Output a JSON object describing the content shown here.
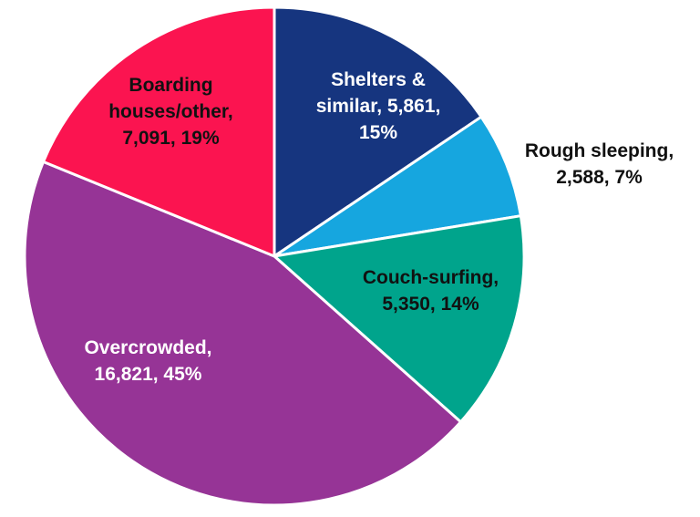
{
  "chart_data": {
    "type": "pie",
    "title": "",
    "start_angle": "12 o'clock, clockwise",
    "slices": [
      {
        "name": "Shelters & similar",
        "value": 5861,
        "percent": 15,
        "color": "#16357f",
        "label_color": "#ffffff",
        "label": [
          "Shelters &",
          "similar, 5,861,",
          "15%"
        ]
      },
      {
        "name": "Rough sleeping",
        "value": 2588,
        "percent": 7,
        "color": "#16a6df",
        "label_color": "#111111",
        "label": [
          "Rough sleeping,",
          "2,588, 7%"
        ]
      },
      {
        "name": "Couch-surfing",
        "value": 5350,
        "percent": 14,
        "color": "#00a48c",
        "label_color": "#111111",
        "label": [
          "Couch-surfing,",
          "5,350, 14%"
        ]
      },
      {
        "name": "Overcrowded",
        "value": 16821,
        "percent": 45,
        "color": "#963496",
        "label_color": "#ffffff",
        "label": [
          "Overcrowded,",
          "16,821, 45%"
        ]
      },
      {
        "name": "Boarding houses/other",
        "value": 7091,
        "percent": 19,
        "color": "#fb1450",
        "label_color": "#111111",
        "label": [
          "Boarding",
          "houses/other,",
          "7,091, 19%"
        ]
      }
    ]
  }
}
